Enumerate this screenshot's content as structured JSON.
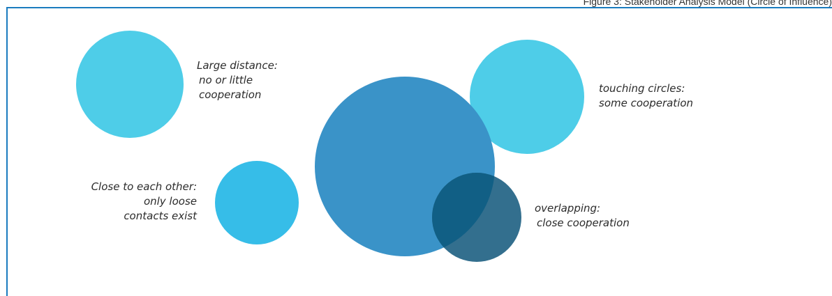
{
  "caption": "Figure 3: Stakeholder Analysis Model (Circle of Influence)",
  "colors": {
    "frame": "#1a7bbf",
    "light_cyan": "#4ecde8",
    "cyan": "#36bde8",
    "blue": "#3a93c8",
    "dark_teal": "#336f8e",
    "overlap": "#115f85"
  },
  "labels": {
    "large_distance": {
      "line1": "Large distance:",
      "line2": "no or little",
      "line3": "cooperation"
    },
    "touching": {
      "line1": "touching circles:",
      "line2": "some cooperation"
    },
    "close": {
      "line1": "Close to each other:",
      "line2": "only loose",
      "line3": "contacts exist"
    },
    "overlapping": {
      "line1": "overlapping:",
      "line2": "close cooperation"
    }
  }
}
